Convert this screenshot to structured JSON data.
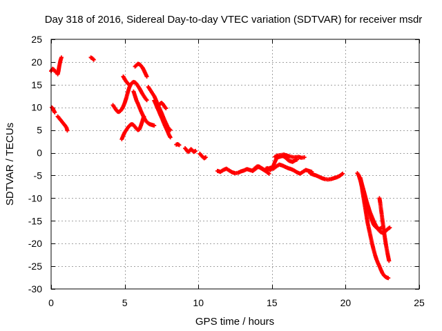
{
  "chart_data": {
    "type": "scatter",
    "title": "Day 318 of 2016, Sidereal Day-to-day VTEC variation (SDTVAR) for receiver msdr",
    "xlabel": "GPS time / hours",
    "ylabel": "SDTVAR / TECUs",
    "xlim": [
      0,
      25
    ],
    "ylim": [
      -30,
      25
    ],
    "xticks": [
      0,
      5,
      10,
      15,
      20,
      25
    ],
    "yticks": [
      25,
      20,
      15,
      10,
      5,
      0,
      -5,
      -10,
      -15,
      -20,
      -25,
      -30
    ],
    "grid": true,
    "legend": "none",
    "marker": "plus",
    "series": [
      {
        "name": "SDTVAR",
        "color": "#ff0000",
        "segments": [
          {
            "x": [
              0.0,
              0.1,
              0.2,
              0.3
            ],
            "y": [
              18.0,
              18.5,
              18.3,
              17.8
            ]
          },
          {
            "x": [
              0.45,
              0.5,
              0.55,
              0.6,
              0.65,
              0.7
            ],
            "y": [
              17.3,
              18.0,
              19.0,
              19.8,
              20.5,
              21.0
            ]
          },
          {
            "x": [
              0.05,
              0.1,
              0.15,
              0.2,
              0.25
            ],
            "y": [
              10.0,
              9.8,
              9.5,
              9.2,
              8.9
            ]
          },
          {
            "x": [
              0.45,
              0.55,
              0.65,
              0.75,
              0.85,
              0.95,
              1.05,
              1.1
            ],
            "y": [
              8.0,
              7.6,
              7.2,
              6.8,
              6.4,
              6.0,
              5.5,
              4.9
            ]
          },
          {
            "x": [
              2.7,
              2.8,
              2.9
            ],
            "y": [
              21.0,
              20.8,
              20.5
            ]
          },
          {
            "x": [
              4.2,
              4.3,
              4.4,
              4.5,
              4.6,
              4.7,
              4.8,
              4.9,
              5.0,
              5.1,
              5.2,
              5.3,
              5.4,
              5.5,
              5.6,
              5.7,
              5.8,
              5.9,
              6.0,
              6.1,
              6.2,
              6.3,
              6.4,
              6.5
            ],
            "y": [
              10.5,
              10.0,
              9.5,
              9.1,
              9.0,
              9.2,
              9.6,
              10.2,
              11.0,
              12.0,
              13.2,
              14.3,
              15.0,
              15.4,
              15.6,
              15.5,
              15.2,
              14.7,
              14.2,
              13.6,
              13.0,
              12.5,
              12.0,
              11.6
            ]
          },
          {
            "x": [
              4.9,
              5.0,
              5.1,
              5.2,
              5.3
            ],
            "y": [
              16.8,
              16.2,
              15.7,
              15.3,
              15.0
            ]
          },
          {
            "x": [
              4.8,
              4.9,
              5.0,
              5.1,
              5.2,
              5.3,
              5.4,
              5.5,
              5.6,
              5.7,
              5.8,
              5.9,
              6.0,
              6.1,
              6.2,
              6.3
            ],
            "y": [
              3.0,
              3.8,
              4.5,
              5.0,
              5.5,
              5.9,
              6.2,
              6.3,
              6.1,
              5.7,
              5.3,
              5.0,
              5.2,
              6.0,
              7.0,
              8.0
            ]
          },
          {
            "x": [
              5.6,
              5.7,
              5.8,
              5.9,
              6.0,
              6.1,
              6.2,
              6.3,
              6.4,
              6.5,
              6.6,
              6.7,
              6.8,
              6.9,
              7.0
            ],
            "y": [
              13.5,
              12.5,
              11.5,
              10.8,
              10.0,
              9.2,
              8.5,
              7.8,
              7.2,
              6.8,
              6.5,
              6.3,
              6.2,
              6.1,
              6.0
            ]
          },
          {
            "x": [
              5.7,
              5.8,
              5.9,
              6.0,
              6.1,
              6.2,
              6.3,
              6.4,
              6.5
            ],
            "y": [
              19.0,
              19.3,
              19.6,
              19.5,
              19.2,
              18.8,
              18.2,
              17.5,
              16.8
            ]
          },
          {
            "x": [
              6.6,
              6.7,
              6.8,
              6.9,
              7.0,
              7.1,
              7.2,
              7.3,
              7.4,
              7.5,
              7.6,
              7.7,
              7.8,
              7.9,
              8.0,
              8.1
            ],
            "y": [
              14.5,
              14.0,
              13.5,
              13.0,
              12.5,
              11.8,
              11.0,
              10.2,
              9.5,
              8.8,
              8.0,
              7.2,
              6.5,
              5.8,
              5.3,
              5.0
            ]
          },
          {
            "x": [
              7.0,
              7.1,
              7.2,
              7.3,
              7.4,
              7.5,
              7.6,
              7.7,
              7.8,
              7.9,
              8.0,
              8.1
            ],
            "y": [
              11.5,
              10.8,
              10.0,
              9.3,
              8.5,
              7.8,
              7.0,
              6.2,
              5.5,
              4.8,
              4.0,
              3.4
            ]
          },
          {
            "x": [
              7.3,
              7.4,
              7.5,
              7.6,
              7.7,
              7.8
            ],
            "y": [
              10.5,
              10.8,
              11.0,
              10.7,
              10.2,
              9.8
            ]
          },
          {
            "x": [
              8.5,
              8.6,
              8.7
            ],
            "y": [
              1.8,
              1.9,
              1.7
            ]
          },
          {
            "x": [
              9.1,
              9.2,
              9.3,
              9.4,
              9.5,
              9.6,
              9.7,
              9.8
            ],
            "y": [
              1.0,
              0.6,
              0.2,
              0.4,
              0.8,
              0.5,
              0.2,
              0.4
            ]
          },
          {
            "x": [
              10.1,
              10.2,
              10.3,
              10.4,
              10.5
            ],
            "y": [
              -0.2,
              -0.6,
              -0.9,
              -1.2,
              -1.0
            ]
          },
          {
            "x": [
              11.3,
              11.5,
              11.7,
              11.9,
              12.1,
              12.3,
              12.5,
              12.7,
              12.9,
              13.1,
              13.3,
              13.5,
              13.7,
              13.9,
              14.1,
              14.3,
              14.5,
              14.7,
              14.9,
              15.1,
              15.3,
              15.5,
              15.7,
              15.9,
              16.1,
              16.3,
              16.5,
              16.7,
              16.9,
              17.1,
              17.3,
              17.5,
              17.7
            ],
            "y": [
              -4.0,
              -4.2,
              -3.8,
              -3.5,
              -3.9,
              -4.3,
              -4.5,
              -4.4,
              -4.1,
              -3.9,
              -3.6,
              -3.8,
              -4.0,
              -3.5,
              -3.0,
              -3.4,
              -3.8,
              -3.6,
              -3.3,
              -3.5,
              -3.0,
              -2.6,
              -2.8,
              -3.1,
              -3.4,
              -3.6,
              -3.9,
              -4.3,
              -4.6,
              -4.2,
              -3.8,
              -4.0,
              -4.2
            ]
          },
          {
            "x": [
              13.8,
              14.0,
              14.2,
              14.4,
              14.6,
              14.8
            ],
            "y": [
              -3.5,
              -3.0,
              -3.3,
              -3.7,
              -4.1,
              -4.6
            ]
          },
          {
            "x": [
              14.6,
              14.7,
              14.8,
              14.9,
              15.0,
              15.1,
              15.2,
              15.3,
              15.4,
              15.5,
              15.6,
              15.7,
              15.8,
              15.9,
              16.0,
              16.1,
              16.2,
              16.3,
              16.4,
              16.5,
              16.6,
              16.7
            ],
            "y": [
              -3.5,
              -3.4,
              -3.6,
              -3.8,
              -3.4,
              -2.8,
              -2.0,
              -1.3,
              -1.0,
              -0.9,
              -0.8,
              -0.7,
              -0.8,
              -1.0,
              -1.3,
              -1.6,
              -1.8,
              -1.9,
              -2.0,
              -1.8,
              -1.6,
              -1.5
            ]
          },
          {
            "x": [
              15.2,
              15.4,
              15.6,
              15.8,
              16.0,
              16.2,
              16.5,
              16.8,
              17.0,
              17.2
            ],
            "y": [
              -0.9,
              -0.6,
              -0.5,
              -0.4,
              -0.6,
              -0.8,
              -1.0,
              -0.9,
              -1.1,
              -1.0
            ]
          },
          {
            "x": [
              17.6,
              17.8,
              18.0,
              18.2,
              18.4,
              18.6,
              18.8,
              19.0,
              19.2,
              19.4,
              19.6,
              19.8
            ],
            "y": [
              -4.5,
              -4.8,
              -5.0,
              -5.3,
              -5.6,
              -5.8,
              -5.9,
              -5.8,
              -5.6,
              -5.4,
              -5.1,
              -4.6
            ]
          },
          {
            "x": [
              20.8,
              20.9,
              21.0,
              21.1,
              21.2,
              21.3,
              21.4,
              21.5,
              21.6,
              21.7,
              21.8,
              21.9,
              22.0,
              22.1,
              22.2,
              22.3,
              22.4,
              22.5,
              22.6,
              22.7,
              22.8,
              22.9
            ],
            "y": [
              -4.5,
              -5.0,
              -6.0,
              -7.5,
              -9.5,
              -11.5,
              -13.5,
              -15.5,
              -17.0,
              -18.5,
              -20.0,
              -21.3,
              -22.5,
              -23.5,
              -24.3,
              -25.0,
              -25.8,
              -26.5,
              -27.0,
              -27.3,
              -27.5,
              -27.6
            ]
          },
          {
            "x": [
              20.9,
              21.0,
              21.1,
              21.2,
              21.3,
              21.4,
              21.5,
              21.6,
              21.7,
              21.8,
              21.9,
              22.0,
              22.1,
              22.2,
              22.3,
              22.4,
              22.5,
              22.6,
              22.7,
              22.8,
              22.9,
              23.0
            ],
            "y": [
              -5.0,
              -6.0,
              -7.0,
              -8.0,
              -9.2,
              -10.5,
              -11.5,
              -12.5,
              -13.4,
              -14.2,
              -15.0,
              -15.7,
              -16.3,
              -16.8,
              -17.2,
              -17.5,
              -17.6,
              -17.5,
              -17.3,
              -17.0,
              -16.7,
              -16.5
            ]
          },
          {
            "x": [
              21.0,
              21.1,
              21.2,
              21.3,
              21.4,
              21.5,
              21.6,
              21.7,
              21.8,
              21.9,
              22.0,
              22.1,
              22.2,
              22.3,
              22.4
            ],
            "y": [
              -5.5,
              -6.8,
              -8.0,
              -9.3,
              -10.5,
              -11.8,
              -13.0,
              -14.2,
              -15.0,
              -15.8,
              -16.2,
              -16.5,
              -16.7,
              -16.8,
              -16.6
            ]
          },
          {
            "x": [
              22.3,
              22.35,
              22.4,
              22.45,
              22.5,
              22.55,
              22.6,
              22.65,
              22.7,
              22.75,
              22.8,
              22.85,
              22.9,
              22.95
            ],
            "y": [
              -10.0,
              -11.0,
              -12.3,
              -13.5,
              -14.8,
              -16.0,
              -17.2,
              -18.3,
              -19.4,
              -20.4,
              -21.3,
              -22.2,
              -23.0,
              -23.8
            ]
          }
        ]
      }
    ]
  }
}
